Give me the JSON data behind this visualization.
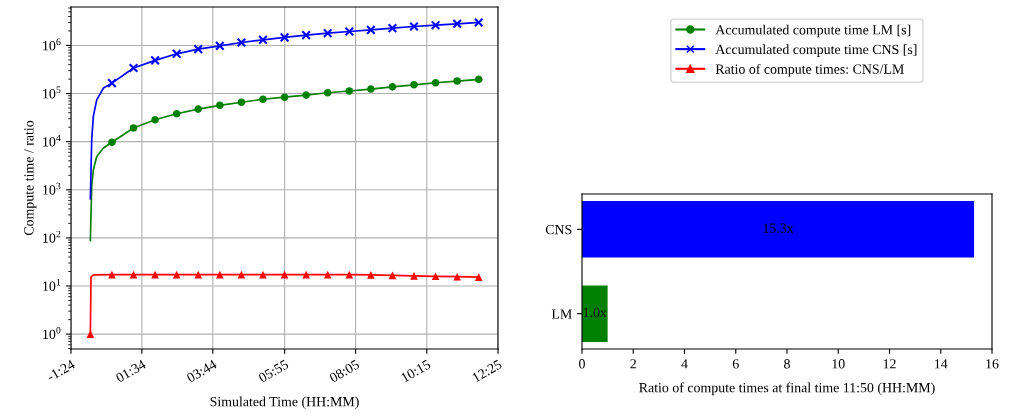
{
  "chart_data": [
    {
      "type": "line",
      "xlabel": "Simulated Time (HH:MM)",
      "ylabel": "Compute time / ratio",
      "log": "y",
      "grid": true,
      "legend": "right",
      "xlim": [
        -0.59,
        12.42
      ],
      "xticks": [
        {
          "value": -0.59,
          "label": "-1:24"
        },
        {
          "value": 1.57,
          "label": "01:34"
        },
        {
          "value": 3.73,
          "label": "03:44"
        },
        {
          "value": 5.92,
          "label": "05:55"
        },
        {
          "value": 8.08,
          "label": "08:05"
        },
        {
          "value": 10.25,
          "label": "10:15"
        },
        {
          "value": 12.42,
          "label": "12:25"
        }
      ],
      "ylim": [
        0.49,
        6300000
      ],
      "yticks": [
        {
          "value": 1,
          "label": "10$^{0}$"
        },
        {
          "value": 10,
          "label": "10$^{1}$"
        },
        {
          "value": 100,
          "label": "10$^{2}$"
        },
        {
          "value": 1000,
          "label": "10$^{3}$"
        },
        {
          "value": 10000,
          "label": "10$^{4}$"
        },
        {
          "value": 100000,
          "label": "10$^{5}$"
        },
        {
          "value": 1000000,
          "label": "10$^{6}$"
        }
      ],
      "series": [
        {
          "type": "line",
          "name": "Accumulated compute time LM [s]",
          "color": "#008000",
          "x": [
            0,
            0.041,
            0.092,
            0.194,
            0.398,
            0.657,
            1.315,
            1.972,
            2.63,
            3.287,
            3.944,
            4.602,
            5.259,
            5.917,
            6.574,
            7.231,
            7.889,
            8.546,
            9.204,
            9.861,
            10.518,
            11.176,
            11.833
          ],
          "values": [
            88,
            1200,
            2600,
            4900,
            7400,
            9700,
            19200,
            28600,
            38000,
            47500,
            57000,
            66000,
            76000,
            84000,
            93000,
            104000,
            113000,
            124000,
            138000,
            152000,
            168000,
            182000,
            197000
          ]
        },
        {
          "type": "scatter",
          "color": "#008000",
          "marker": "circle",
          "x": [
            0.657,
            1.315,
            1.972,
            2.63,
            3.287,
            3.944,
            4.602,
            5.259,
            5.917,
            6.574,
            7.231,
            7.889,
            8.546,
            9.204,
            9.861,
            10.518,
            11.176,
            11.833
          ],
          "values": [
            9700,
            19200,
            28600,
            38000,
            47500,
            57000,
            66000,
            76000,
            84000,
            93000,
            104000,
            113000,
            124000,
            138000,
            152000,
            168000,
            182000,
            197000
          ]
        },
        {
          "type": "line",
          "name": "Accumulated compute time CNS [s]",
          "color": "#0000ff",
          "x": [
            0,
            0.041,
            0.092,
            0.194,
            0.398,
            0.657,
            1.315,
            1.972,
            2.63,
            3.287,
            3.944,
            4.602,
            5.259,
            5.917,
            6.574,
            7.231,
            7.889,
            8.546,
            9.204,
            9.861,
            10.518,
            11.176,
            11.833
          ],
          "values": [
            650,
            11000,
            34000,
            74000,
            130000,
            165000,
            340000,
            490000,
            670000,
            840000,
            980000,
            1150000,
            1310000,
            1470000,
            1640000,
            1800000,
            1950000,
            2110000,
            2290000,
            2480000,
            2640000,
            2820000,
            3000000
          ]
        },
        {
          "type": "scatter",
          "color": "#0000ff",
          "marker": "cross",
          "x": [
            0.657,
            1.315,
            1.972,
            2.63,
            3.287,
            3.944,
            4.602,
            5.259,
            5.917,
            6.574,
            7.231,
            7.889,
            8.546,
            9.204,
            9.861,
            10.518,
            11.176,
            11.833
          ],
          "values": [
            165000,
            340000,
            490000,
            670000,
            840000,
            980000,
            1150000,
            1310000,
            1470000,
            1640000,
            1800000,
            1950000,
            2110000,
            2290000,
            2480000,
            2640000,
            2820000,
            3000000
          ]
        },
        {
          "type": "line",
          "name": "Ratio of compute times: CNS/LM",
          "color": "#ff0000",
          "x": [
            0,
            0.02,
            0.1,
            0.657,
            1.315,
            1.972,
            2.63,
            3.287,
            3.944,
            4.602,
            5.259,
            5.917,
            6.574,
            7.231,
            7.889,
            8.546,
            9.204,
            9.861,
            10.518,
            11.176,
            11.833
          ],
          "values": [
            1,
            15.5,
            17.0,
            17.2,
            17.2,
            17.2,
            17.2,
            17.2,
            17.2,
            17.2,
            17.2,
            17.2,
            17.2,
            17.2,
            17.2,
            17.0,
            16.6,
            16.2,
            15.9,
            15.6,
            15.3
          ]
        },
        {
          "type": "scatter",
          "color": "#ff0000",
          "marker": "triangle",
          "x": [
            0,
            0.657,
            1.315,
            1.972,
            2.63,
            3.287,
            3.944,
            4.602,
            5.259,
            5.917,
            6.574,
            7.231,
            7.889,
            8.546,
            9.204,
            9.861,
            10.518,
            11.176,
            11.833
          ],
          "values": [
            1,
            17.2,
            17.2,
            17.2,
            17.2,
            17.2,
            17.2,
            17.2,
            17.2,
            17.2,
            17.2,
            17.2,
            17.2,
            17.0,
            16.6,
            16.2,
            15.9,
            15.6,
            15.3
          ]
        }
      ]
    },
    {
      "type": "bar",
      "orientation": "horizontal",
      "xlabel": "Ratio of compute times at final time 11:50 (HH:MM)",
      "categories": [
        "CNS",
        "LM"
      ],
      "values": [
        15.3,
        1.0
      ],
      "colors": [
        "#0000ff",
        "#008000"
      ],
      "value_labels": [
        "15.3x",
        "1.0x"
      ],
      "xlim": [
        0,
        16
      ],
      "xticks": [
        0,
        2,
        4,
        6,
        8,
        10,
        12,
        14,
        16
      ]
    }
  ]
}
